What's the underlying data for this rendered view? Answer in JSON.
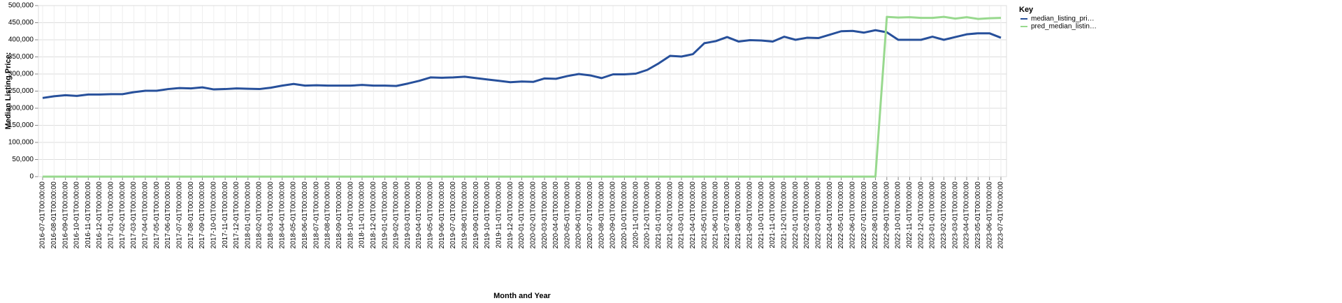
{
  "chart_data": {
    "type": "line",
    "x_label": "Month and Year",
    "y_label": "Median Listing Price:",
    "legend_title": "Key",
    "legend_position": "right",
    "grid": true,
    "categories": [
      "2016-07-01T00:00:00",
      "2016-08-01T00:00:00",
      "2016-09-01T00:00:00",
      "2016-10-01T00:00:00",
      "2016-11-01T00:00:00",
      "2016-12-01T00:00:00",
      "2017-01-01T00:00:00",
      "2017-02-01T00:00:00",
      "2017-03-01T00:00:00",
      "2017-04-01T00:00:00",
      "2017-05-01T00:00:00",
      "2017-06-01T00:00:00",
      "2017-07-01T00:00:00",
      "2017-08-01T00:00:00",
      "2017-09-01T00:00:00",
      "2017-10-01T00:00:00",
      "2017-11-01T00:00:00",
      "2017-12-01T00:00:00",
      "2018-01-01T00:00:00",
      "2018-02-01T00:00:00",
      "2018-03-01T00:00:00",
      "2018-04-01T00:00:00",
      "2018-05-01T00:00:00",
      "2018-06-01T00:00:00",
      "2018-07-01T00:00:00",
      "2018-08-01T00:00:00",
      "2018-09-01T00:00:00",
      "2018-10-01T00:00:00",
      "2018-11-01T00:00:00",
      "2018-12-01T00:00:00",
      "2019-01-01T00:00:00",
      "2019-02-01T00:00:00",
      "2019-03-01T00:00:00",
      "2019-04-01T00:00:00",
      "2019-05-01T00:00:00",
      "2019-06-01T00:00:00",
      "2019-07-01T00:00:00",
      "2019-08-01T00:00:00",
      "2019-09-01T00:00:00",
      "2019-10-01T00:00:00",
      "2019-11-01T00:00:00",
      "2019-12-01T00:00:00",
      "2020-01-01T00:00:00",
      "2020-02-01T00:00:00",
      "2020-03-01T00:00:00",
      "2020-04-01T00:00:00",
      "2020-05-01T00:00:00",
      "2020-06-01T00:00:00",
      "2020-07-01T00:00:00",
      "2020-08-01T00:00:00",
      "2020-09-01T00:00:00",
      "2020-10-01T00:00:00",
      "2020-11-01T00:00:00",
      "2020-12-01T00:00:00",
      "2021-01-01T00:00:00",
      "2021-02-01T00:00:00",
      "2021-03-01T00:00:00",
      "2021-04-01T00:00:00",
      "2021-05-01T00:00:00",
      "2021-06-01T00:00:00",
      "2021-07-01T00:00:00",
      "2021-08-01T00:00:00",
      "2021-09-01T00:00:00",
      "2021-10-01T00:00:00",
      "2021-11-01T00:00:00",
      "2021-12-01T00:00:00",
      "2022-01-01T00:00:00",
      "2022-02-01T00:00:00",
      "2022-03-01T00:00:00",
      "2022-04-01T00:00:00",
      "2022-05-01T00:00:00",
      "2022-06-01T00:00:00",
      "2022-07-01T00:00:00",
      "2022-08-01T00:00:00",
      "2022-09-01T00:00:00",
      "2022-10-01T00:00:00",
      "2022-11-01T00:00:00",
      "2022-12-01T00:00:00",
      "2023-01-01T00:00:00",
      "2023-02-01T00:00:00",
      "2023-03-01T00:00:00",
      "2023-04-01T00:00:00",
      "2023-05-01T00:00:00",
      "2023-06-01T00:00:00",
      "2023-07-01T00:00:00"
    ],
    "series": [
      {
        "name": "median_listing_pri…",
        "color": "#27509b",
        "values": [
          230000,
          235000,
          238000,
          236000,
          240000,
          240000,
          241000,
          241000,
          247000,
          251000,
          251000,
          256000,
          259000,
          258000,
          261000,
          255000,
          256000,
          258000,
          257000,
          256000,
          260000,
          266000,
          271000,
          266000,
          267000,
          266000,
          266000,
          266000,
          268000,
          266000,
          266000,
          265000,
          272000,
          280000,
          290000,
          289000,
          290000,
          292000,
          288000,
          284000,
          280000,
          276000,
          278000,
          277000,
          287000,
          286000,
          294000,
          300000,
          296000,
          288000,
          299000,
          299000,
          301000,
          312000,
          331000,
          353000,
          351000,
          358000,
          390000,
          396000,
          408000,
          395000,
          399000,
          398000,
          395000,
          409000,
          400000,
          406000,
          405000,
          415000,
          425000,
          426000,
          421000,
          428000,
          422000,
          400000,
          400000,
          400000,
          409000,
          400000,
          408000,
          416000,
          419000,
          419000,
          406000
        ]
      },
      {
        "name": "pred_median_listin…",
        "color": "#98d98e",
        "values": [
          0,
          0,
          0,
          0,
          0,
          0,
          0,
          0,
          0,
          0,
          0,
          0,
          0,
          0,
          0,
          0,
          0,
          0,
          0,
          0,
          0,
          0,
          0,
          0,
          0,
          0,
          0,
          0,
          0,
          0,
          0,
          0,
          0,
          0,
          0,
          0,
          0,
          0,
          0,
          0,
          0,
          0,
          0,
          0,
          0,
          0,
          0,
          0,
          0,
          0,
          0,
          0,
          0,
          0,
          0,
          0,
          0,
          0,
          0,
          0,
          0,
          0,
          0,
          0,
          0,
          0,
          0,
          0,
          0,
          0,
          0,
          0,
          0,
          0,
          467000,
          465000,
          466000,
          464000,
          464000,
          467000,
          462000,
          466000,
          461000,
          463000,
          464000
        ]
      }
    ],
    "ylim": [
      0,
      500000
    ],
    "yticks": [
      0,
      {
        "value": 50000,
        "label": "50,000"
      },
      {
        "value": 100000,
        "label": "100,000"
      },
      {
        "value": 150000,
        "label": "150,000"
      },
      {
        "value": 200000,
        "label": "200,000"
      },
      {
        "value": 250000,
        "label": "250,000"
      },
      {
        "value": 300000,
        "label": "300,000"
      },
      {
        "value": 350000,
        "label": "350,000"
      },
      {
        "value": 400000,
        "label": "400,000"
      },
      {
        "value": 450000,
        "label": "450,000"
      },
      {
        "value": 500000,
        "label": "500,000"
      }
    ]
  }
}
